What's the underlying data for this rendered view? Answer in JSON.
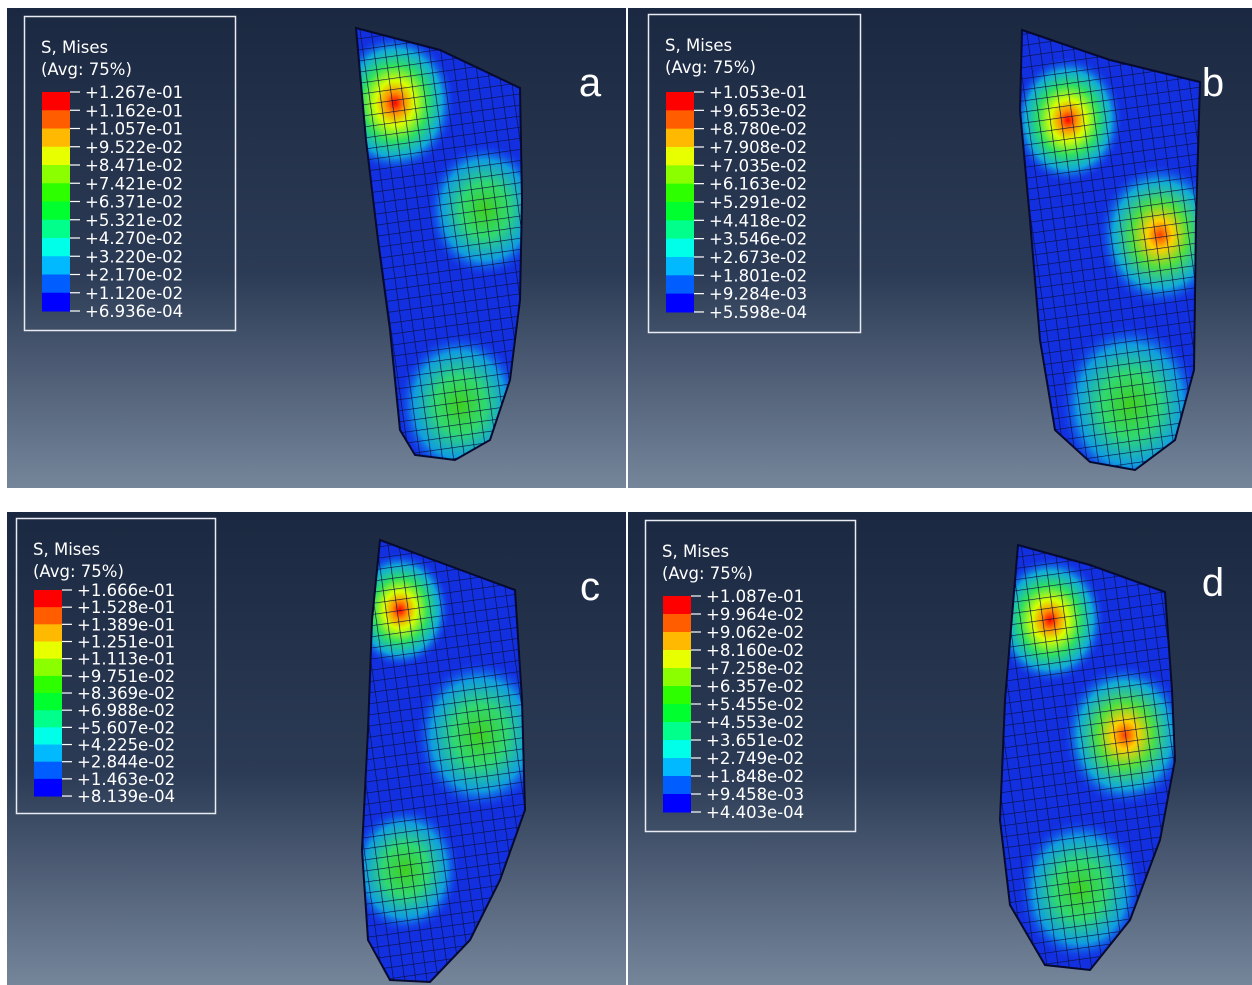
{
  "panels": [
    {
      "letter": "a",
      "legend": {
        "title": "S, Mises",
        "subtitle": "(Avg: 75%)",
        "labels": [
          "+1.267e-01",
          "+1.162e-01",
          "+1.057e-01",
          "+9.522e-02",
          "+8.471e-02",
          "+7.421e-02",
          "+6.371e-02",
          "+5.321e-02",
          "+4.270e-02",
          "+3.220e-02",
          "+2.170e-02",
          "+1.120e-02",
          "+6.936e-04"
        ]
      }
    },
    {
      "letter": "b",
      "legend": {
        "title": "S, Mises",
        "subtitle": "(Avg: 75%)",
        "labels": [
          "+1.053e-01",
          "+9.653e-02",
          "+8.780e-02",
          "+7.908e-02",
          "+7.035e-02",
          "+6.163e-02",
          "+5.291e-02",
          "+4.418e-02",
          "+3.546e-02",
          "+2.673e-02",
          "+1.801e-02",
          "+9.284e-03",
          "+5.598e-04"
        ]
      }
    },
    {
      "letter": "c",
      "legend": {
        "title": "S, Mises",
        "subtitle": "(Avg: 75%)",
        "labels": [
          "+1.666e-01",
          "+1.528e-01",
          "+1.389e-01",
          "+1.251e-01",
          "+1.113e-01",
          "+9.751e-02",
          "+8.369e-02",
          "+6.988e-02",
          "+5.607e-02",
          "+4.225e-02",
          "+2.844e-02",
          "+1.463e-02",
          "+8.139e-04"
        ]
      }
    },
    {
      "letter": "d",
      "legend": {
        "title": "S, Mises",
        "subtitle": "(Avg: 75%)",
        "labels": [
          "+1.087e-01",
          "+9.964e-02",
          "+9.062e-02",
          "+8.160e-02",
          "+7.258e-02",
          "+6.357e-02",
          "+5.455e-02",
          "+4.553e-02",
          "+3.651e-02",
          "+2.749e-02",
          "+1.848e-02",
          "+9.458e-03",
          "+4.403e-04"
        ]
      }
    }
  ]
}
